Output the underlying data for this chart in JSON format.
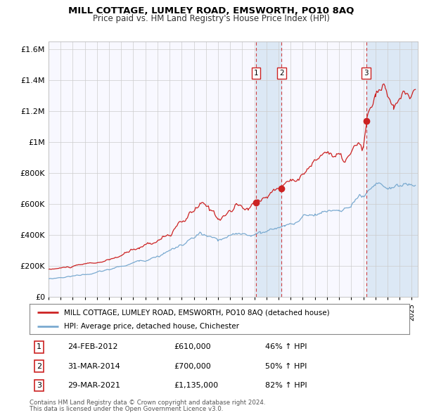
{
  "title": "MILL COTTAGE, LUMLEY ROAD, EMSWORTH, PO10 8AQ",
  "subtitle": "Price paid vs. HM Land Registry's House Price Index (HPI)",
  "red_legend": "MILL COTTAGE, LUMLEY ROAD, EMSWORTH, PO10 8AQ (detached house)",
  "blue_legend": "HPI: Average price, detached house, Chichester",
  "transactions": [
    {
      "num": 1,
      "date": "24-FEB-2012",
      "date_val": 2012.14,
      "price": 610000,
      "pct": "46%"
    },
    {
      "num": 2,
      "date": "31-MAR-2014",
      "date_val": 2014.25,
      "price": 700000,
      "pct": "50%"
    },
    {
      "num": 3,
      "date": "29-MAR-2021",
      "date_val": 2021.24,
      "price": 1135000,
      "pct": "82%"
    }
  ],
  "footnote1": "Contains HM Land Registry data © Crown copyright and database right 2024.",
  "footnote2": "This data is licensed under the Open Government Licence v3.0.",
  "xmin": 1995.0,
  "xmax": 2025.5,
  "ymin": 0,
  "ymax": 1650000,
  "red_color": "#cc2222",
  "blue_color": "#7aaad0",
  "plot_bg": "#f8f8ff",
  "grid_color": "#cccccc",
  "shade_color": "#dce8f5"
}
